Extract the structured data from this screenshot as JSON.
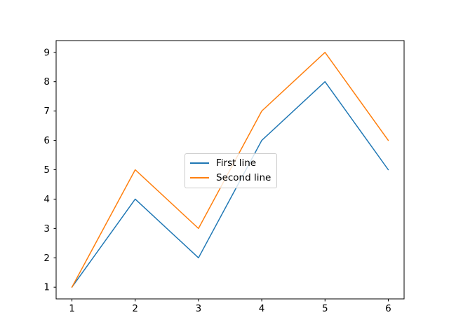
{
  "chart_data": {
    "type": "line",
    "x": [
      1,
      2,
      3,
      4,
      5,
      6
    ],
    "series": [
      {
        "name": "First line",
        "color": "#1f77b4",
        "values": [
          1,
          4,
          2,
          6,
          8,
          5
        ]
      },
      {
        "name": "Second line",
        "color": "#ff7f0e",
        "values": [
          1,
          5,
          3,
          7,
          9,
          6
        ]
      }
    ],
    "xticks": [
      "1",
      "2",
      "3",
      "4",
      "5",
      "6"
    ],
    "xtick_values": [
      1,
      2,
      3,
      4,
      5,
      6
    ],
    "yticks": [
      "1",
      "2",
      "3",
      "4",
      "5",
      "6",
      "7",
      "8",
      "9"
    ],
    "ytick_values": [
      1,
      2,
      3,
      4,
      5,
      6,
      7,
      8,
      9
    ],
    "xlim": [
      0.75,
      6.25
    ],
    "ylim": [
      0.6,
      9.4
    ],
    "title": "",
    "xlabel": "",
    "ylabel": "",
    "grid": false,
    "legend": {
      "position": "center"
    },
    "line_width": 1.5,
    "axis_color": "#000000",
    "tick_label_color": "#000000",
    "legend_border_color": "#cccccc",
    "background_color": "#ffffff"
  }
}
